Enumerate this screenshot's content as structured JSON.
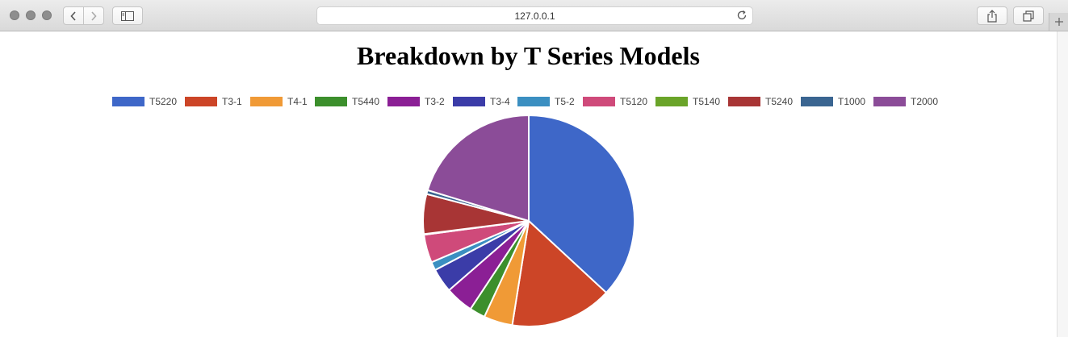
{
  "browser": {
    "url": "127.0.0.1",
    "icons": {
      "back": "chevron-left-icon",
      "forward": "chevron-right-icon",
      "sidebar": "sidebar-icon",
      "reload": "reload-icon",
      "share": "share-icon",
      "tabs": "tabs-icon",
      "new_tab": "plus-icon"
    }
  },
  "page": {
    "title": "Breakdown by T Series Models"
  },
  "chart_data": {
    "type": "pie",
    "title": "Breakdown by T Series Models",
    "legend_position": "top",
    "categories": [
      "T5220",
      "T3-1",
      "T4-1",
      "T5440",
      "T3-2",
      "T3-4",
      "T5-2",
      "T5120",
      "T5140",
      "T5240",
      "T1000",
      "T2000"
    ],
    "values": [
      36.9,
      15.6,
      4.4,
      2.4,
      4.3,
      3.7,
      1.3,
      4.3,
      0.1,
      6.1,
      0.6,
      20.3
    ],
    "colors": [
      "#3e67c8",
      "#cc4527",
      "#f09a36",
      "#3c8f2c",
      "#8b1f95",
      "#3b3ca8",
      "#3b8fc1",
      "#cf4a7a",
      "#6aa429",
      "#a83535",
      "#3a6591",
      "#8b4c98"
    ]
  }
}
